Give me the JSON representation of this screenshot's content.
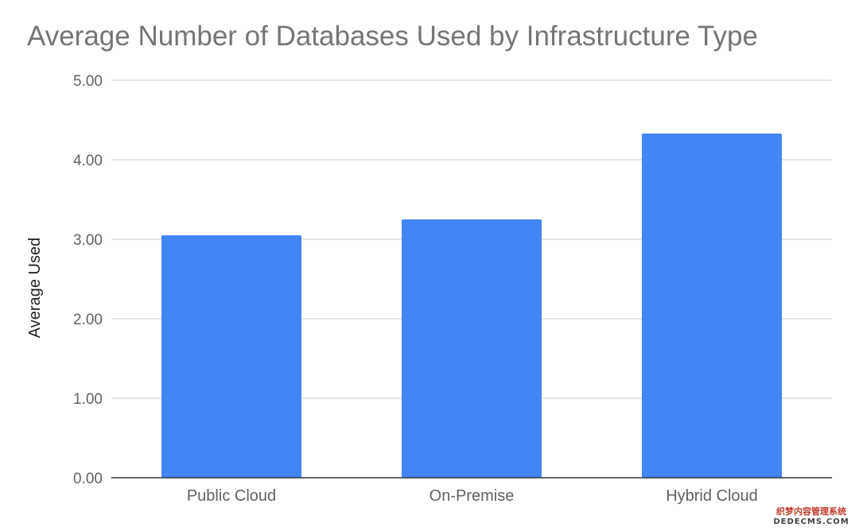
{
  "chart_data": {
    "type": "bar",
    "title": "Average Number of Databases Used by Infrastructure Type",
    "xlabel": "",
    "ylabel": "Average Used",
    "categories": [
      "Public Cloud",
      "On-Premise",
      "Hybrid Cloud"
    ],
    "values": [
      3.05,
      3.25,
      4.33
    ],
    "ylim": [
      0,
      5
    ],
    "yticks": [
      "0.00",
      "1.00",
      "2.00",
      "3.00",
      "4.00",
      "5.00"
    ],
    "grid": true,
    "legend": "none",
    "colors": {
      "bar": "#4285F4",
      "grid": "#cccccc",
      "axis": "#333333",
      "title": "#757575",
      "tick_label": "#616161"
    }
  },
  "watermark": {
    "line1": "织梦内容管理系统",
    "line2": "DEDECMS.COM"
  }
}
